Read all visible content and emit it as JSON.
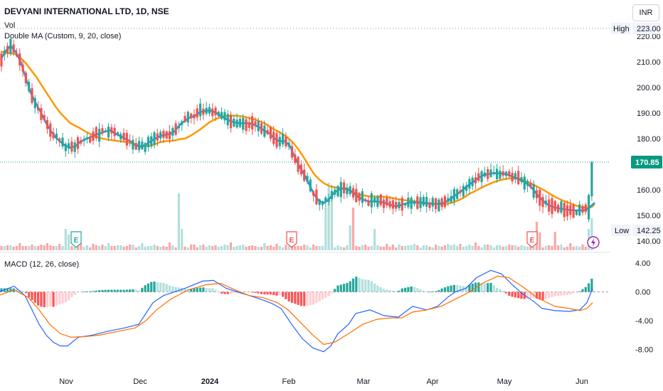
{
  "header": {
    "title": "DEVYANI INTERNATIONAL LTD, 1D, NSE",
    "vol_label": "Vol",
    "ma_label": "Double MA (Custom, 9, 20, close)",
    "macd_label": "MACD (12, 26, close)",
    "currency": "INR"
  },
  "colors": {
    "up": "#26a69a",
    "down": "#ef5350",
    "ma9": "#2196f3",
    "ma20": "#ff9800",
    "macd_line": "#2962ff",
    "signal_line": "#ff6d00",
    "last_price_bg": "#089981"
  },
  "badges": {
    "earnings": "E"
  },
  "chart_data": [
    {
      "type": "candlestick",
      "title": "DEVYANI INTERNATIONAL LTD, 1D, NSE",
      "y_ticks": [
        "140.00",
        "150.00",
        "160.00",
        "170.00",
        "180.00",
        "190.00",
        "200.00",
        "210.00",
        "220.00"
      ],
      "ylim": [
        137,
        223
      ],
      "x_ticks": [
        "Nov",
        "Dec",
        "2024",
        "Feb",
        "Mar",
        "Apr",
        "May",
        "Jun"
      ],
      "high_label": "High",
      "high_value": "223.00",
      "low_label": "Low",
      "low_value": "142.25",
      "last_price": "170.85",
      "earnings_markers": [
        "Nov",
        "Feb",
        "May"
      ],
      "ma_points": [
        [
          1,
          210.8,
          214.0
        ],
        [
          8,
          214.2,
          213.5
        ],
        [
          15,
          216.2,
          213.2
        ],
        [
          22,
          214.0,
          213.0
        ],
        [
          29,
          210.0,
          211.5
        ],
        [
          36,
          204.0,
          209.5
        ],
        [
          43,
          198.0,
          207.0
        ],
        [
          50,
          194.0,
          204.5
        ],
        [
          57,
          190.5,
          201.5
        ],
        [
          64,
          186.5,
          198.5
        ],
        [
          71,
          183.2,
          195.5
        ],
        [
          78,
          180.5,
          192.5
        ],
        [
          85,
          178.8,
          190.0
        ],
        [
          92,
          177.2,
          188.0
        ],
        [
          99,
          176.5,
          186.0
        ],
        [
          106,
          177.0,
          185.0
        ],
        [
          113,
          178.8,
          184.0
        ],
        [
          120,
          179.8,
          182.8
        ],
        [
          127,
          180.5,
          181.8
        ],
        [
          134,
          181.5,
          180.8
        ],
        [
          141,
          182.0,
          180.2
        ],
        [
          148,
          182.8,
          179.8
        ],
        [
          155,
          183.2,
          179.5
        ],
        [
          162,
          182.0,
          179.2
        ],
        [
          169,
          181.0,
          179.0
        ],
        [
          176,
          180.0,
          178.7
        ],
        [
          183,
          179.0,
          178.3
        ],
        [
          190,
          177.5,
          177.8
        ],
        [
          197,
          176.8,
          177.2
        ],
        [
          204,
          177.5,
          177.0
        ],
        [
          211,
          178.8,
          177.2
        ],
        [
          218,
          180.0,
          177.8
        ],
        [
          225,
          181.0,
          178.6
        ],
        [
          232,
          181.5,
          179.0
        ],
        [
          239,
          181.8,
          179.1
        ],
        [
          246,
          183.0,
          179.3
        ],
        [
          253,
          185.5,
          179.8
        ],
        [
          260,
          187.0,
          180.0
        ],
        [
          267,
          188.2,
          181.0
        ],
        [
          274,
          189.0,
          182.2
        ],
        [
          281,
          190.3,
          183.5
        ],
        [
          288,
          190.8,
          185.0
        ],
        [
          295,
          191.0,
          186.5
        ],
        [
          302,
          190.3,
          187.5
        ],
        [
          309,
          189.2,
          188.2
        ],
        [
          316,
          188.0,
          188.8
        ],
        [
          323,
          187.0,
          189.0
        ],
        [
          330,
          186.3,
          189.0
        ],
        [
          337,
          186.0,
          188.8
        ],
        [
          344,
          186.0,
          188.5
        ],
        [
          351,
          186.0,
          188.0
        ],
        [
          358,
          185.3,
          187.5
        ],
        [
          365,
          184.3,
          186.8
        ],
        [
          372,
          183.0,
          186.0
        ],
        [
          379,
          182.0,
          184.8
        ],
        [
          386,
          180.0,
          183.5
        ],
        [
          393,
          179.0,
          182.5
        ],
        [
          400,
          179.0,
          181.3
        ],
        [
          407,
          177.5,
          179.8
        ],
        [
          414,
          173.0,
          177.8
        ],
        [
          421,
          169.0,
          175.2
        ],
        [
          428,
          165.8,
          172.2
        ],
        [
          435,
          162.0,
          169.0
        ],
        [
          442,
          158.0,
          166.0
        ],
        [
          449,
          155.5,
          164.0
        ],
        [
          456,
          155.0,
          162.5
        ],
        [
          463,
          156.5,
          161.5
        ],
        [
          470,
          159.0,
          161.0
        ],
        [
          477,
          160.2,
          160.8
        ],
        [
          484,
          160.7,
          160.5
        ],
        [
          491,
          160.0,
          159.8
        ],
        [
          498,
          158.5,
          159.0
        ],
        [
          505,
          157.0,
          158.2
        ],
        [
          512,
          156.0,
          157.8
        ],
        [
          519,
          155.5,
          157.5
        ],
        [
          526,
          155.5,
          157.4
        ],
        [
          533,
          155.3,
          157.4
        ],
        [
          540,
          155.0,
          157.3
        ],
        [
          547,
          154.3,
          157.1
        ],
        [
          554,
          153.7,
          156.7
        ],
        [
          561,
          153.8,
          156.3
        ],
        [
          568,
          154.5,
          156.0
        ],
        [
          575,
          155.0,
          155.8
        ],
        [
          582,
          155.2,
          155.6
        ],
        [
          589,
          155.0,
          155.3
        ],
        [
          596,
          154.8,
          155.0
        ],
        [
          603,
          154.7,
          154.8
        ],
        [
          610,
          154.6,
          154.6
        ],
        [
          617,
          154.6,
          154.5
        ],
        [
          624,
          154.9,
          154.4
        ],
        [
          631,
          156.0,
          154.7
        ],
        [
          638,
          157.5,
          155.2
        ],
        [
          645,
          158.8,
          156.0
        ],
        [
          652,
          160.3,
          157.0
        ],
        [
          659,
          162.0,
          158.3
        ],
        [
          666,
          163.3,
          159.3
        ],
        [
          673,
          164.8,
          160.3
        ],
        [
          680,
          165.8,
          161.3
        ],
        [
          687,
          166.2,
          162.2
        ],
        [
          694,
          166.5,
          163.0
        ],
        [
          701,
          166.5,
          163.6
        ],
        [
          708,
          166.3,
          164.1
        ],
        [
          715,
          165.8,
          164.5
        ],
        [
          722,
          165.0,
          164.5
        ],
        [
          729,
          164.3,
          164.3
        ],
        [
          736,
          163.2,
          163.8
        ],
        [
          743,
          162.0,
          163.0
        ],
        [
          750,
          160.0,
          162.0
        ],
        [
          757,
          157.5,
          161.0
        ],
        [
          764,
          155.5,
          160.0
        ],
        [
          771,
          154.0,
          158.8
        ],
        [
          778,
          153.3,
          157.6
        ],
        [
          785,
          152.8,
          156.6
        ],
        [
          792,
          152.5,
          155.7
        ],
        [
          799,
          152.2,
          155.0
        ],
        [
          806,
          152.0,
          154.2
        ],
        [
          813,
          152.0,
          153.6
        ],
        [
          820,
          152.0,
          153.2
        ],
        [
          826,
          152.5,
          153.0
        ],
        [
          832,
          154.0,
          153.3
        ],
        [
          836,
          155.0,
          154.5
        ]
      ],
      "volume": {
        "pattern": [
          3,
          2,
          5,
          4,
          2,
          3,
          6,
          3,
          4,
          2,
          5,
          3,
          2,
          4,
          3,
          7,
          3,
          2,
          4,
          5
        ],
        "spikes": [
          {
            "day": "Nov 3",
            "value": 30
          },
          {
            "day": "Nov 4",
            "value": 22
          },
          {
            "day": "Dec 20",
            "value": 80
          },
          {
            "day": "Dec 21",
            "value": 30
          },
          {
            "day": "Feb 20",
            "value": 60
          },
          {
            "day": "Feb 21",
            "value": 95
          },
          {
            "day": "Feb 22",
            "value": 75
          },
          {
            "day": "Feb 28",
            "value": 35
          },
          {
            "day": "Mar 1",
            "value": 60
          },
          {
            "day": "Mar 8",
            "value": 30
          },
          {
            "day": "Apr 30",
            "value": 26
          },
          {
            "day": "May 10",
            "value": 40
          },
          {
            "day": "May 11",
            "value": 25
          },
          {
            "day": "Jun 4",
            "value": 30
          },
          {
            "day": "Jun 5",
            "value": 45
          },
          {
            "day": "Jun 6",
            "value": 60
          }
        ]
      }
    },
    {
      "type": "line",
      "title": "MACD (12, 26, close)",
      "y_ticks": [
        "4.00",
        "0.00",
        "-4.00",
        "-8.00"
      ],
      "ylim": [
        -11,
        5
      ],
      "series": [
        {
          "name": "MACD",
          "points": [
            [
              -2,
              0.0
            ],
            [
              20,
              0.8
            ],
            [
              35,
              -0.5
            ],
            [
              45,
              -2.5
            ],
            [
              55,
              -4.5
            ],
            [
              65,
              -6.0
            ],
            [
              75,
              -7.0
            ],
            [
              85,
              -7.5
            ],
            [
              95,
              -7.5
            ],
            [
              110,
              -6.3
            ],
            [
              130,
              -6.0
            ],
            [
              150,
              -5.5
            ],
            [
              175,
              -5.0
            ],
            [
              195,
              -4.5
            ],
            [
              205,
              -3.0
            ],
            [
              215,
              -1.5
            ],
            [
              230,
              -0.5
            ],
            [
              260,
              0.5
            ],
            [
              285,
              1.5
            ],
            [
              300,
              1.6
            ],
            [
              318,
              0.5
            ],
            [
              340,
              -0.2
            ],
            [
              360,
              -0.8
            ],
            [
              380,
              -1.5
            ],
            [
              395,
              -2.3
            ],
            [
              410,
              -4.5
            ],
            [
              425,
              -6.5
            ],
            [
              440,
              -7.8
            ],
            [
              455,
              -8.3
            ],
            [
              465,
              -7.5
            ],
            [
              475,
              -5.8
            ],
            [
              490,
              -4.5
            ],
            [
              500,
              -3.0
            ],
            [
              520,
              -2.5
            ],
            [
              540,
              -3.3
            ],
            [
              560,
              -3.5
            ],
            [
              580,
              -2.0
            ],
            [
              600,
              -2.5
            ],
            [
              615,
              -2.0
            ],
            [
              630,
              -0.7
            ],
            [
              640,
              0.0
            ],
            [
              655,
              0.5
            ],
            [
              670,
              2.0
            ],
            [
              690,
              3.0
            ],
            [
              705,
              2.5
            ],
            [
              720,
              1.0
            ],
            [
              735,
              -0.3
            ],
            [
              750,
              -1.3
            ],
            [
              762,
              -2.3
            ],
            [
              780,
              -2.6
            ],
            [
              800,
              -2.7
            ],
            [
              815,
              -2.5
            ],
            [
              825,
              -1.5
            ],
            [
              833,
              0.5
            ]
          ]
        },
        {
          "name": "Signal",
          "points": [
            [
              -2,
              -0.5
            ],
            [
              20,
              0.3
            ],
            [
              40,
              -0.8
            ],
            [
              55,
              -2.5
            ],
            [
              70,
              -4.5
            ],
            [
              85,
              -5.8
            ],
            [
              100,
              -6.3
            ],
            [
              120,
              -6.2
            ],
            [
              140,
              -6.0
            ],
            [
              165,
              -5.5
            ],
            [
              190,
              -5.0
            ],
            [
              205,
              -4.0
            ],
            [
              220,
              -2.5
            ],
            [
              240,
              -1.0
            ],
            [
              265,
              0.3
            ],
            [
              290,
              1.0
            ],
            [
              310,
              1.2
            ],
            [
              330,
              0.3
            ],
            [
              350,
              -0.5
            ],
            [
              370,
              -0.8
            ],
            [
              390,
              -1.5
            ],
            [
              405,
              -2.5
            ],
            [
              420,
              -4.0
            ],
            [
              440,
              -6.0
            ],
            [
              455,
              -7.3
            ],
            [
              470,
              -7.0
            ],
            [
              490,
              -5.8
            ],
            [
              510,
              -4.5
            ],
            [
              530,
              -3.8
            ],
            [
              550,
              -3.6
            ],
            [
              565,
              -3.6
            ],
            [
              580,
              -2.8
            ],
            [
              600,
              -2.5
            ],
            [
              620,
              -2.0
            ],
            [
              640,
              -1.0
            ],
            [
              660,
              0.0
            ],
            [
              680,
              1.3
            ],
            [
              700,
              2.2
            ],
            [
              715,
              2.0
            ],
            [
              735,
              0.7
            ],
            [
              755,
              -0.8
            ],
            [
              780,
              -2.0
            ],
            [
              800,
              -2.3
            ],
            [
              815,
              -2.6
            ],
            [
              825,
              -2.3
            ],
            [
              833,
              -1.5
            ]
          ]
        }
      ]
    }
  ]
}
